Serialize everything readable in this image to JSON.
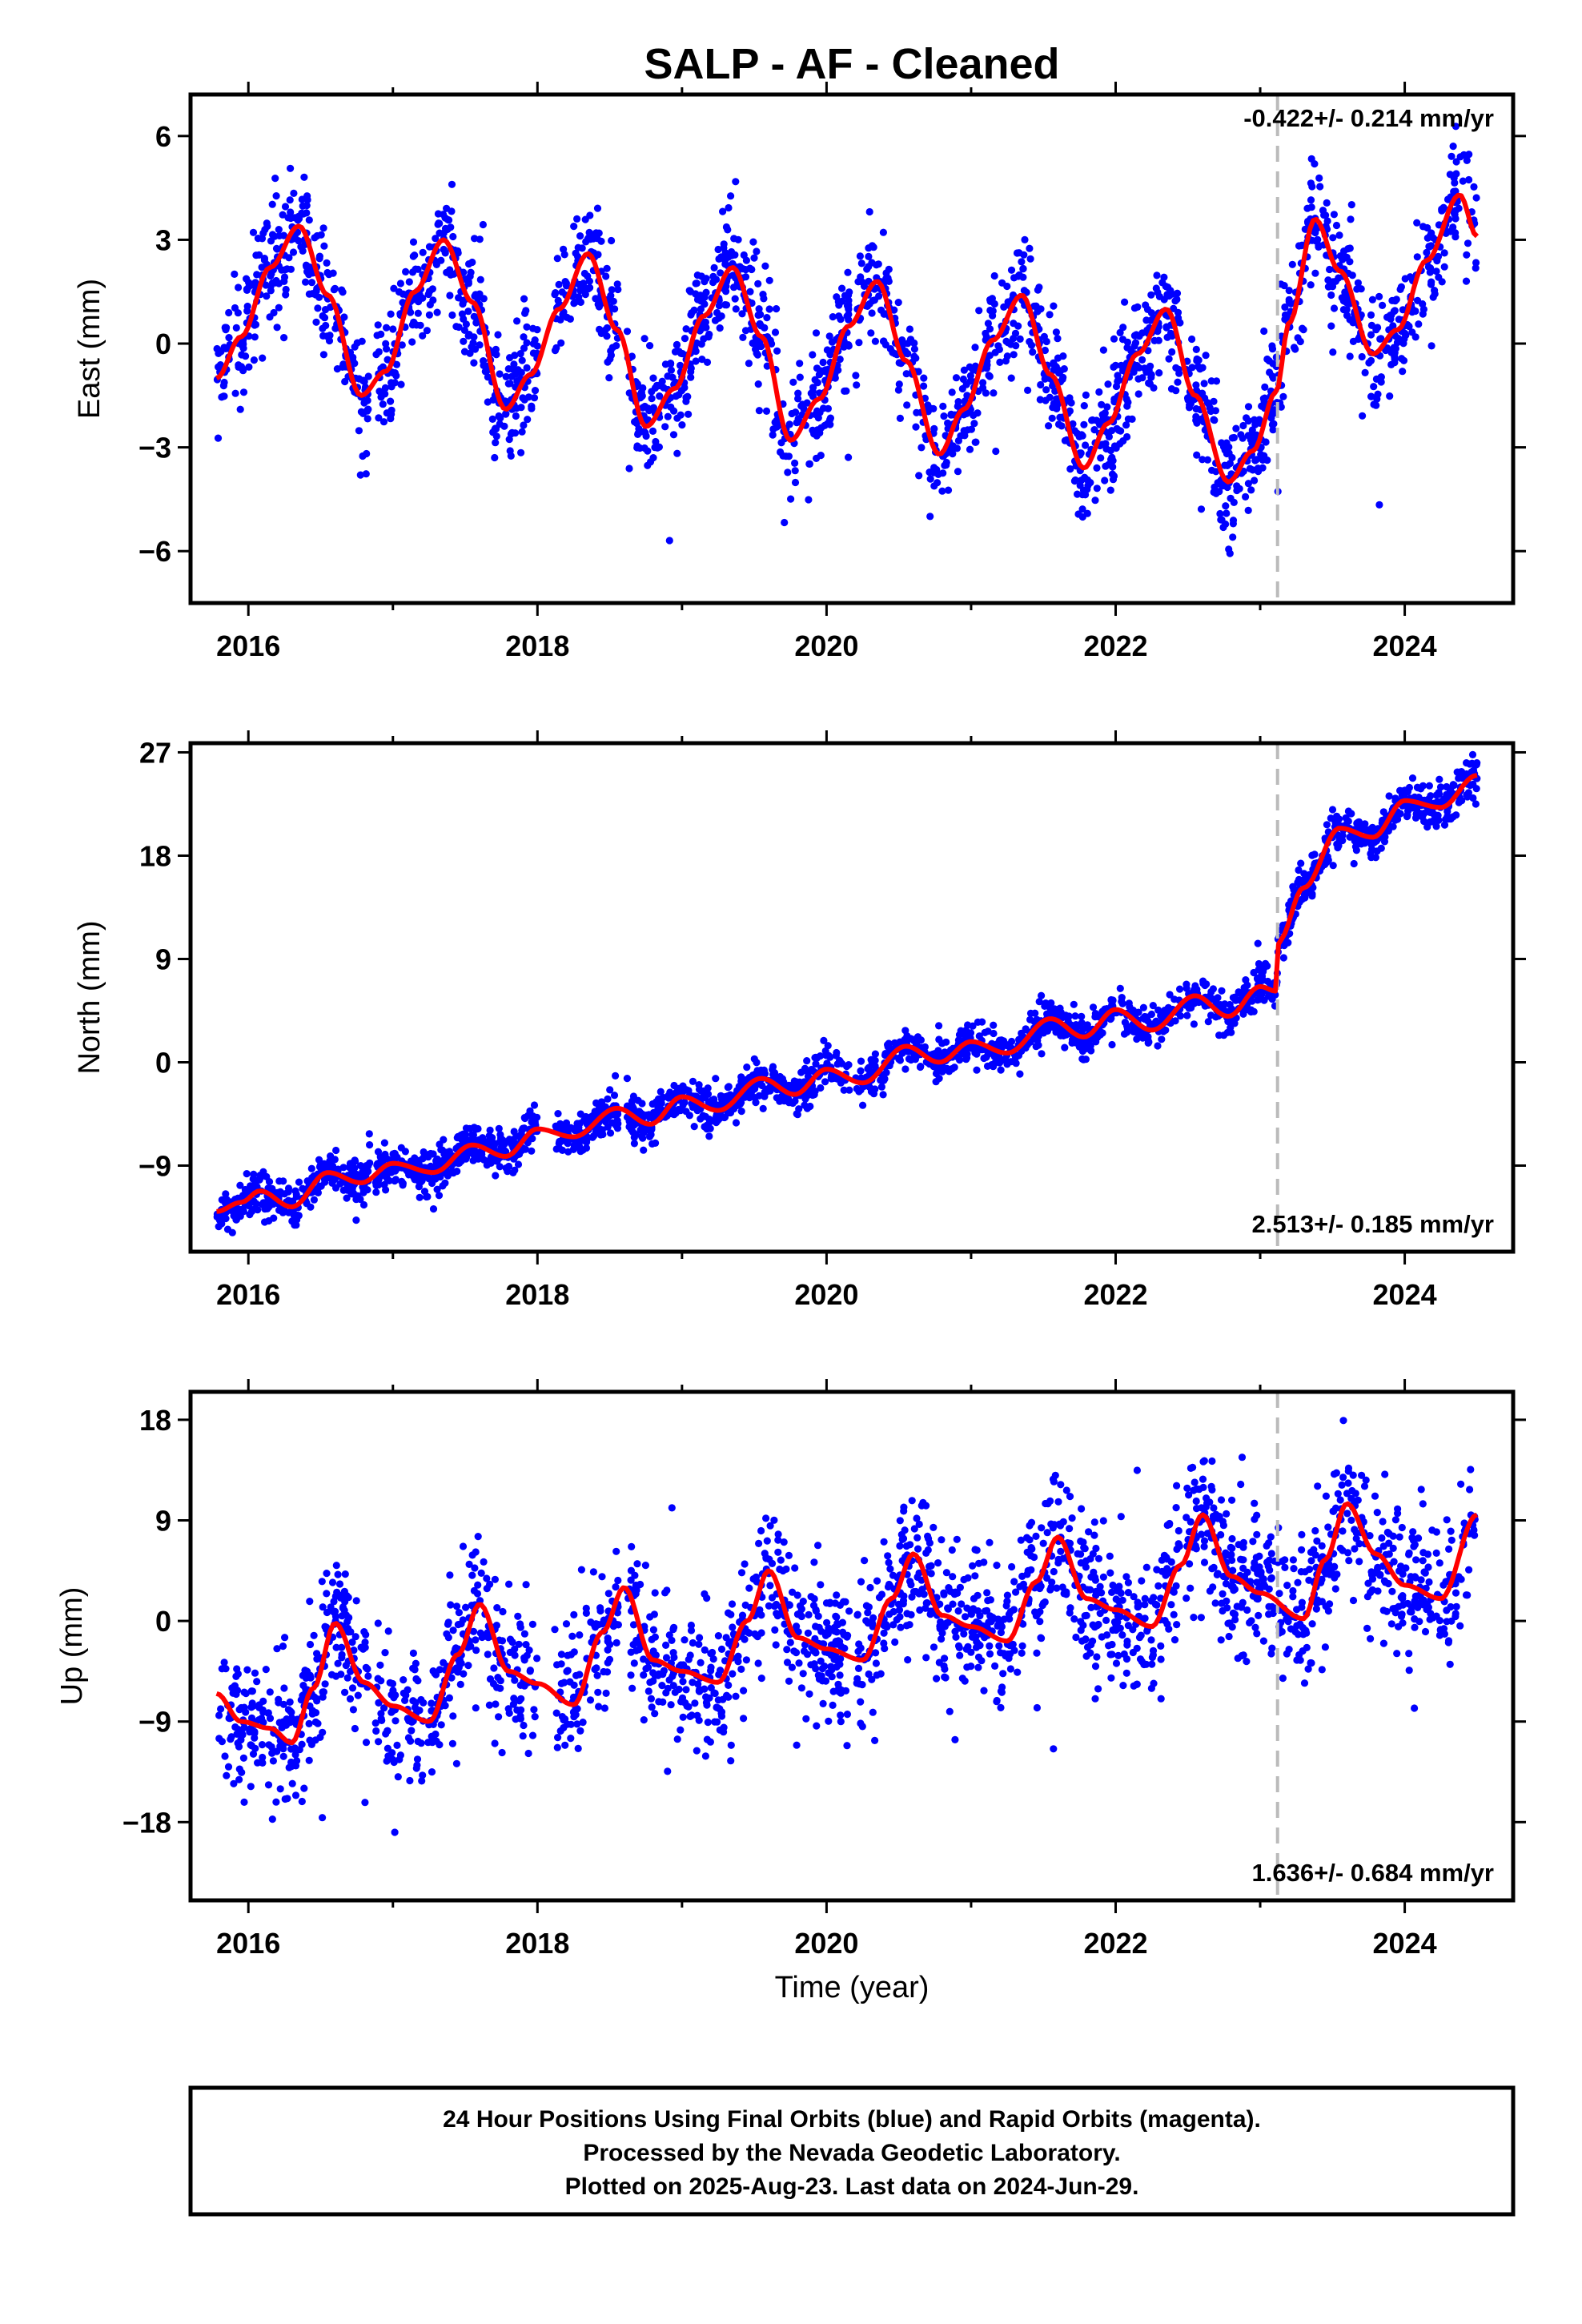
{
  "title": "SALP  - AF - Cleaned",
  "xlabel": "Time (year)",
  "footer": {
    "line1": "24 Hour Positions Using Final Orbits (blue) and Rapid Orbits (magenta).",
    "line2": "Processed by the Nevada Geodetic Laboratory.",
    "line3": "Plotted on 2025-Aug-23. Last data on 2024-Jun-29."
  },
  "colors": {
    "points": "#0000ff",
    "model": "#ff0000",
    "step": "#bbbbbb",
    "frame": "#000000"
  },
  "chart_data": [
    {
      "type": "scatter",
      "component": "east",
      "ylabel": "East (mm)",
      "rate_label": "-0.422+/- 0.214 mm/yr",
      "rate_position": "top-right",
      "xlim": [
        2015.6,
        2024.75
      ],
      "ylim": [
        -7.5,
        7.2
      ],
      "xticks": [
        2016,
        2018,
        2020,
        2022,
        2024
      ],
      "yticks": [
        6,
        3,
        0,
        -3,
        -6
      ],
      "step_epoch": 2023.12,
      "model_curve": [
        [
          2015.78,
          -1.0
        ],
        [
          2015.95,
          0.2
        ],
        [
          2016.15,
          2.2
        ],
        [
          2016.35,
          3.4
        ],
        [
          2016.55,
          1.4
        ],
        [
          2016.78,
          -1.5
        ],
        [
          2016.95,
          -0.8
        ],
        [
          2017.15,
          1.5
        ],
        [
          2017.35,
          3.0
        ],
        [
          2017.55,
          1.2
        ],
        [
          2017.78,
          -1.9
        ],
        [
          2017.95,
          -0.9
        ],
        [
          2018.15,
          1.0
        ],
        [
          2018.35,
          2.6
        ],
        [
          2018.55,
          0.4
        ],
        [
          2018.75,
          -2.4
        ],
        [
          2018.95,
          -1.3
        ],
        [
          2019.15,
          0.8
        ],
        [
          2019.35,
          2.2
        ],
        [
          2019.55,
          0.2
        ],
        [
          2019.75,
          -2.8
        ],
        [
          2019.95,
          -1.6
        ],
        [
          2020.15,
          0.5
        ],
        [
          2020.35,
          1.8
        ],
        [
          2020.55,
          -0.5
        ],
        [
          2020.78,
          -3.2
        ],
        [
          2020.95,
          -1.9
        ],
        [
          2021.15,
          0.1
        ],
        [
          2021.35,
          1.4
        ],
        [
          2021.55,
          -0.9
        ],
        [
          2021.78,
          -3.6
        ],
        [
          2021.95,
          -2.3
        ],
        [
          2022.15,
          -0.3
        ],
        [
          2022.35,
          1.0
        ],
        [
          2022.55,
          -1.5
        ],
        [
          2022.78,
          -4.0
        ],
        [
          2022.95,
          -3.1
        ],
        [
          2023.11,
          -1.4
        ],
        [
          2023.2,
          0.6
        ],
        [
          2023.38,
          3.6
        ],
        [
          2023.55,
          2.1
        ],
        [
          2023.78,
          -0.3
        ],
        [
          2023.95,
          0.4
        ],
        [
          2024.15,
          2.4
        ],
        [
          2024.38,
          4.3
        ],
        [
          2024.5,
          3.1
        ]
      ],
      "scatter": {
        "start": 2015.78,
        "end": 2024.5,
        "count": 2400,
        "sigma": 0.85,
        "gaps": [
          [
            2016.84,
            2016.88
          ],
          [
            2018.0,
            2018.12
          ],
          [
            2018.56,
            2018.62
          ],
          [
            2020.16,
            2020.2
          ],
          [
            2022.45,
            2022.48
          ]
        ]
      }
    },
    {
      "type": "scatter",
      "component": "north",
      "ylabel": "North (mm)",
      "rate_label": "2.513+/- 0.185 mm/yr",
      "rate_position": "bottom-right",
      "xlim": [
        2015.6,
        2024.75
      ],
      "ylim": [
        -16.5,
        27.8
      ],
      "xticks": [
        2016,
        2018,
        2020,
        2022,
        2024
      ],
      "yticks": [
        27,
        18,
        9,
        0,
        -9
      ],
      "step_epoch": 2023.12,
      "model_curve": [
        [
          2015.78,
          -13.0
        ],
        [
          2015.95,
          -12.2
        ],
        [
          2016.08,
          -11.2
        ],
        [
          2016.3,
          -12.6
        ],
        [
          2016.55,
          -9.6
        ],
        [
          2016.78,
          -10.5
        ],
        [
          2017.0,
          -8.8
        ],
        [
          2017.28,
          -9.6
        ],
        [
          2017.55,
          -7.2
        ],
        [
          2017.78,
          -8.2
        ],
        [
          2018.0,
          -5.8
        ],
        [
          2018.25,
          -6.5
        ],
        [
          2018.55,
          -4.0
        ],
        [
          2018.78,
          -5.4
        ],
        [
          2019.0,
          -3.0
        ],
        [
          2019.25,
          -4.2
        ],
        [
          2019.55,
          -1.4
        ],
        [
          2019.78,
          -2.8
        ],
        [
          2020.0,
          -0.6
        ],
        [
          2020.25,
          -1.8
        ],
        [
          2020.55,
          1.4
        ],
        [
          2020.78,
          0.0
        ],
        [
          2021.0,
          1.8
        ],
        [
          2021.25,
          0.8
        ],
        [
          2021.55,
          3.8
        ],
        [
          2021.78,
          2.2
        ],
        [
          2022.0,
          4.6
        ],
        [
          2022.25,
          2.8
        ],
        [
          2022.55,
          5.8
        ],
        [
          2022.78,
          4.0
        ],
        [
          2023.0,
          6.6
        ],
        [
          2023.11,
          6.2
        ],
        [
          2023.13,
          10.6
        ],
        [
          2023.3,
          15.2
        ],
        [
          2023.55,
          20.4
        ],
        [
          2023.78,
          19.6
        ],
        [
          2024.0,
          22.8
        ],
        [
          2024.25,
          22.2
        ],
        [
          2024.5,
          25.0
        ]
      ],
      "scatter": {
        "start": 2015.78,
        "end": 2024.5,
        "count": 2400,
        "sigma": 0.9,
        "gaps": [
          [
            2016.84,
            2016.88
          ],
          [
            2018.0,
            2018.12
          ],
          [
            2018.56,
            2018.62
          ],
          [
            2020.16,
            2020.2
          ],
          [
            2022.45,
            2022.48
          ]
        ]
      }
    },
    {
      "type": "scatter",
      "component": "up",
      "ylabel": "Up (mm)",
      "rate_label": "1.636+/- 0.684 mm/yr",
      "rate_position": "bottom-right",
      "xlim": [
        2015.6,
        2024.75
      ],
      "ylim": [
        -25.0,
        20.5
      ],
      "xticks": [
        2016,
        2018,
        2020,
        2022,
        2024
      ],
      "yticks": [
        18,
        9,
        0,
        -9,
        -18
      ],
      "step_epoch": 2023.12,
      "model_curve": [
        [
          2015.78,
          -6.5
        ],
        [
          2015.95,
          -9.0
        ],
        [
          2016.15,
          -9.6
        ],
        [
          2016.3,
          -10.9
        ],
        [
          2016.45,
          -6.0
        ],
        [
          2016.6,
          -0.2
        ],
        [
          2016.8,
          -5.5
        ],
        [
          2017.0,
          -7.6
        ],
        [
          2017.25,
          -9.0
        ],
        [
          2017.45,
          -3.0
        ],
        [
          2017.6,
          1.5
        ],
        [
          2017.8,
          -4.5
        ],
        [
          2018.0,
          -5.6
        ],
        [
          2018.25,
          -7.5
        ],
        [
          2018.45,
          -1.0
        ],
        [
          2018.6,
          3.0
        ],
        [
          2018.8,
          -3.5
        ],
        [
          2019.0,
          -4.5
        ],
        [
          2019.25,
          -5.5
        ],
        [
          2019.45,
          0.0
        ],
        [
          2019.6,
          4.5
        ],
        [
          2019.8,
          -1.5
        ],
        [
          2020.0,
          -2.5
        ],
        [
          2020.25,
          -3.5
        ],
        [
          2020.45,
          2.0
        ],
        [
          2020.6,
          6.0
        ],
        [
          2020.8,
          0.5
        ],
        [
          2021.0,
          -0.5
        ],
        [
          2021.25,
          -1.8
        ],
        [
          2021.45,
          3.5
        ],
        [
          2021.6,
          7.5
        ],
        [
          2021.8,
          2.0
        ],
        [
          2022.0,
          1.0
        ],
        [
          2022.25,
          -0.5
        ],
        [
          2022.45,
          5.0
        ],
        [
          2022.6,
          9.5
        ],
        [
          2022.8,
          4.0
        ],
        [
          2023.0,
          2.5
        ],
        [
          2023.3,
          0.2
        ],
        [
          2023.45,
          5.5
        ],
        [
          2023.6,
          10.5
        ],
        [
          2023.8,
          6.0
        ],
        [
          2024.0,
          3.2
        ],
        [
          2024.25,
          2.0
        ],
        [
          2024.5,
          9.5
        ]
      ],
      "scatter": {
        "start": 2015.78,
        "end": 2024.5,
        "count": 2300,
        "sigma": 3.2,
        "gaps": [
          [
            2016.84,
            2016.88
          ],
          [
            2018.0,
            2018.12
          ],
          [
            2018.56,
            2018.62
          ],
          [
            2020.16,
            2020.2
          ],
          [
            2022.45,
            2022.48
          ]
        ]
      }
    }
  ]
}
